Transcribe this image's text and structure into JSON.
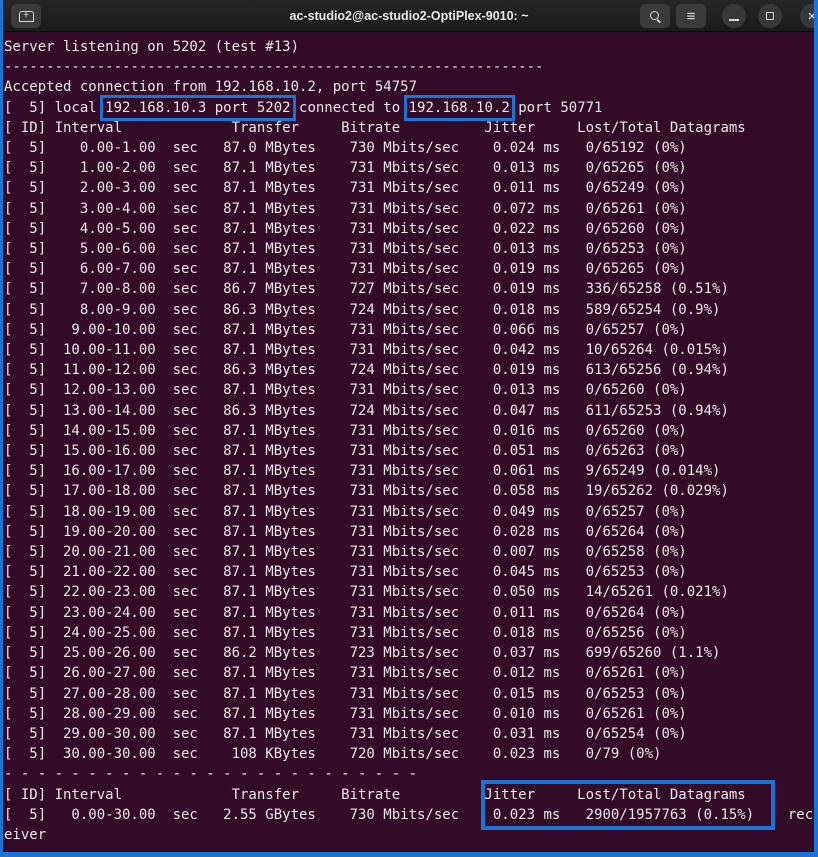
{
  "window": {
    "title": "ac-studio2@ac-studio2-OptiPlex-9010: ~"
  },
  "titlebar": {
    "icons": {
      "new_tab_glyph": "+",
      "menu_glyph": "≡",
      "close_glyph": "×"
    }
  },
  "colors": {
    "terminal_bg": "#330a27",
    "terminal_fg": "#ece6ea",
    "annotation_blue": "#1b74d3",
    "titlebar_bg": "#1e1e1e"
  },
  "terminal": {
    "intro_lines": [
      "Server listening on 5202 (test #13)",
      "----------------------------------------------------------------",
      "Accepted connection from 192.168.10.2, port 54757"
    ],
    "connection": {
      "prefix": "[  5] local ",
      "local_endpoint": "192.168.10.3 port 5202",
      "middle": " connected to ",
      "remote_endpoint": "192.168.10.2",
      "suffix": " port 50771"
    },
    "column_header": "[ ID] Interval             Transfer     Bitrate          Jitter     Lost/Total Datagrams",
    "stream_id": "5",
    "intervals": [
      {
        "interval": "0.00-1.00",
        "transfer": "87.0 MBytes",
        "bitrate": "730 Mbits/sec",
        "jitter": "0.024 ms",
        "lost_total": "0/65192 (0%)"
      },
      {
        "interval": "1.00-2.00",
        "transfer": "87.1 MBytes",
        "bitrate": "731 Mbits/sec",
        "jitter": "0.013 ms",
        "lost_total": "0/65265 (0%)"
      },
      {
        "interval": "2.00-3.00",
        "transfer": "87.1 MBytes",
        "bitrate": "731 Mbits/sec",
        "jitter": "0.011 ms",
        "lost_total": "0/65249 (0%)"
      },
      {
        "interval": "3.00-4.00",
        "transfer": "87.1 MBytes",
        "bitrate": "731 Mbits/sec",
        "jitter": "0.072 ms",
        "lost_total": "0/65261 (0%)"
      },
      {
        "interval": "4.00-5.00",
        "transfer": "87.1 MBytes",
        "bitrate": "731 Mbits/sec",
        "jitter": "0.022 ms",
        "lost_total": "0/65260 (0%)"
      },
      {
        "interval": "5.00-6.00",
        "transfer": "87.1 MBytes",
        "bitrate": "731 Mbits/sec",
        "jitter": "0.013 ms",
        "lost_total": "0/65253 (0%)"
      },
      {
        "interval": "6.00-7.00",
        "transfer": "87.1 MBytes",
        "bitrate": "731 Mbits/sec",
        "jitter": "0.019 ms",
        "lost_total": "0/65265 (0%)"
      },
      {
        "interval": "7.00-8.00",
        "transfer": "86.7 MBytes",
        "bitrate": "727 Mbits/sec",
        "jitter": "0.019 ms",
        "lost_total": "336/65258 (0.51%)"
      },
      {
        "interval": "8.00-9.00",
        "transfer": "86.3 MBytes",
        "bitrate": "724 Mbits/sec",
        "jitter": "0.018 ms",
        "lost_total": "589/65254 (0.9%)"
      },
      {
        "interval": "9.00-10.00",
        "transfer": "87.1 MBytes",
        "bitrate": "731 Mbits/sec",
        "jitter": "0.066 ms",
        "lost_total": "0/65257 (0%)"
      },
      {
        "interval": "10.00-11.00",
        "transfer": "87.1 MBytes",
        "bitrate": "731 Mbits/sec",
        "jitter": "0.042 ms",
        "lost_total": "10/65264 (0.015%)"
      },
      {
        "interval": "11.00-12.00",
        "transfer": "86.3 MBytes",
        "bitrate": "724 Mbits/sec",
        "jitter": "0.019 ms",
        "lost_total": "613/65256 (0.94%)"
      },
      {
        "interval": "12.00-13.00",
        "transfer": "87.1 MBytes",
        "bitrate": "731 Mbits/sec",
        "jitter": "0.013 ms",
        "lost_total": "0/65260 (0%)"
      },
      {
        "interval": "13.00-14.00",
        "transfer": "86.3 MBytes",
        "bitrate": "724 Mbits/sec",
        "jitter": "0.047 ms",
        "lost_total": "611/65253 (0.94%)"
      },
      {
        "interval": "14.00-15.00",
        "transfer": "87.1 MBytes",
        "bitrate": "731 Mbits/sec",
        "jitter": "0.016 ms",
        "lost_total": "0/65260 (0%)"
      },
      {
        "interval": "15.00-16.00",
        "transfer": "87.1 MBytes",
        "bitrate": "731 Mbits/sec",
        "jitter": "0.051 ms",
        "lost_total": "0/65263 (0%)"
      },
      {
        "interval": "16.00-17.00",
        "transfer": "87.1 MBytes",
        "bitrate": "731 Mbits/sec",
        "jitter": "0.061 ms",
        "lost_total": "9/65249 (0.014%)"
      },
      {
        "interval": "17.00-18.00",
        "transfer": "87.1 MBytes",
        "bitrate": "731 Mbits/sec",
        "jitter": "0.058 ms",
        "lost_total": "19/65262 (0.029%)"
      },
      {
        "interval": "18.00-19.00",
        "transfer": "87.1 MBytes",
        "bitrate": "731 Mbits/sec",
        "jitter": "0.049 ms",
        "lost_total": "0/65257 (0%)"
      },
      {
        "interval": "19.00-20.00",
        "transfer": "87.1 MBytes",
        "bitrate": "731 Mbits/sec",
        "jitter": "0.028 ms",
        "lost_total": "0/65264 (0%)"
      },
      {
        "interval": "20.00-21.00",
        "transfer": "87.1 MBytes",
        "bitrate": "731 Mbits/sec",
        "jitter": "0.007 ms",
        "lost_total": "0/65258 (0%)"
      },
      {
        "interval": "21.00-22.00",
        "transfer": "87.1 MBytes",
        "bitrate": "731 Mbits/sec",
        "jitter": "0.045 ms",
        "lost_total": "0/65253 (0%)"
      },
      {
        "interval": "22.00-23.00",
        "transfer": "87.1 MBytes",
        "bitrate": "731 Mbits/sec",
        "jitter": "0.050 ms",
        "lost_total": "14/65261 (0.021%)"
      },
      {
        "interval": "23.00-24.00",
        "transfer": "87.1 MBytes",
        "bitrate": "731 Mbits/sec",
        "jitter": "0.011 ms",
        "lost_total": "0/65264 (0%)"
      },
      {
        "interval": "24.00-25.00",
        "transfer": "87.1 MBytes",
        "bitrate": "731 Mbits/sec",
        "jitter": "0.018 ms",
        "lost_total": "0/65256 (0%)"
      },
      {
        "interval": "25.00-26.00",
        "transfer": "86.2 MBytes",
        "bitrate": "723 Mbits/sec",
        "jitter": "0.037 ms",
        "lost_total": "699/65260 (1.1%)"
      },
      {
        "interval": "26.00-27.00",
        "transfer": "87.1 MBytes",
        "bitrate": "731 Mbits/sec",
        "jitter": "0.012 ms",
        "lost_total": "0/65261 (0%)"
      },
      {
        "interval": "27.00-28.00",
        "transfer": "87.1 MBytes",
        "bitrate": "731 Mbits/sec",
        "jitter": "0.015 ms",
        "lost_total": "0/65253 (0%)"
      },
      {
        "interval": "28.00-29.00",
        "transfer": "87.1 MBytes",
        "bitrate": "731 Mbits/sec",
        "jitter": "0.010 ms",
        "lost_total": "0/65261 (0%)"
      },
      {
        "interval": "29.00-30.00",
        "transfer": "87.1 MBytes",
        "bitrate": "731 Mbits/sec",
        "jitter": "0.031 ms",
        "lost_total": "0/65254 (0%)"
      },
      {
        "interval": "30.00-30.00",
        "transfer": "108 KBytes",
        "bitrate": "720 Mbits/sec",
        "jitter": "0.023 ms",
        "lost_total": "0/79 (0%)"
      }
    ],
    "separator": "- - - - - - - - - - - - - - - - - - - - - - - - -",
    "summary_header": "[ ID] Interval             Transfer     Bitrate          Jitter     Lost/Total Datagrams",
    "summary": {
      "interval": "0.00-30.00",
      "transfer": "2.55 GBytes",
      "bitrate": "730 Mbits/sec",
      "jitter": "0.023 ms",
      "lost_total": "2900/1957763 (0.15%)",
      "role": "receiver"
    }
  }
}
